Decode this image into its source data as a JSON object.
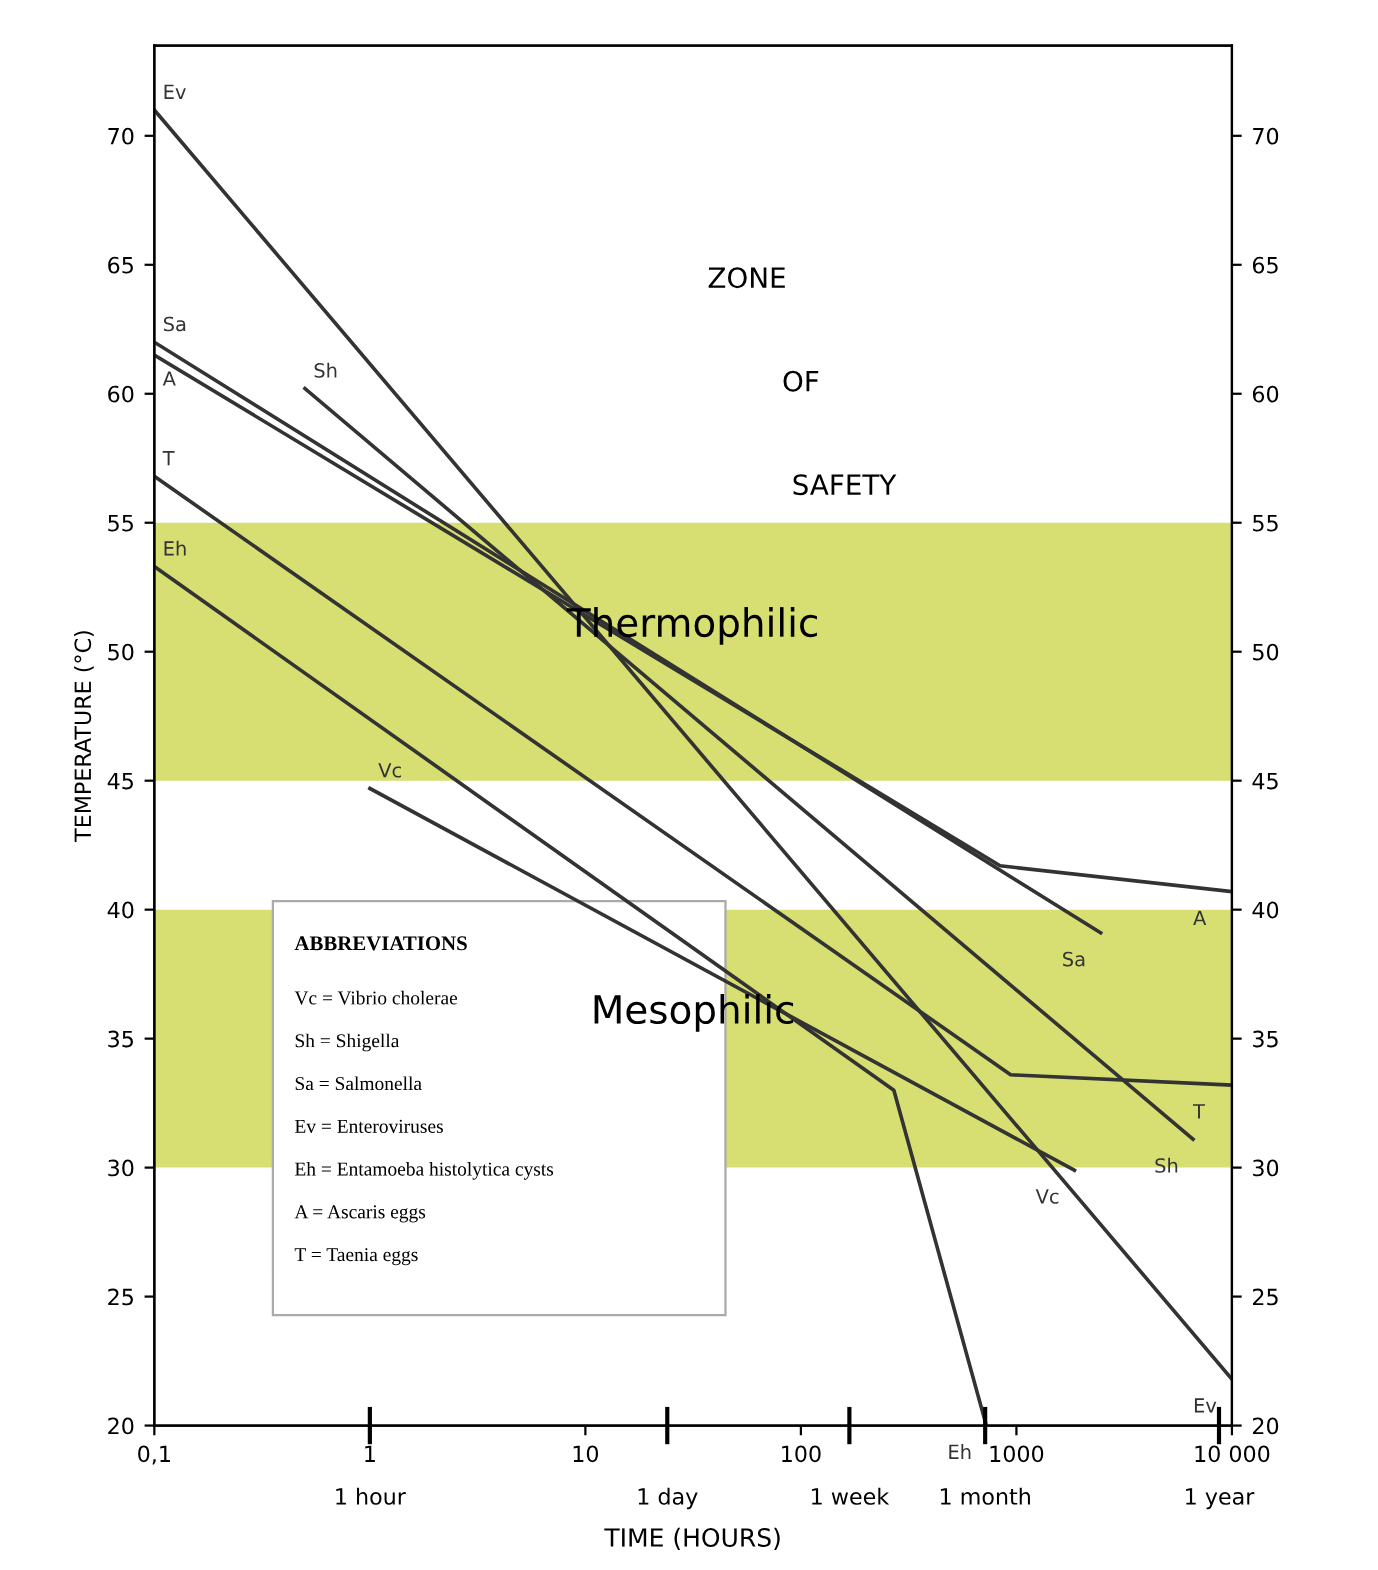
{
  "chart_data": {
    "type": "line",
    "xlabel": "TIME (HOURS)",
    "ylabel": "TEMPERATURE (°C)",
    "log": "x",
    "grid": false,
    "legend": false,
    "marker": "none",
    "line_style": "solid",
    "xlim": [
      0.1,
      10000
    ],
    "xticks": [
      {
        "value": 0.1,
        "label": "0,1"
      },
      1,
      10,
      100,
      1000,
      {
        "value": 10000,
        "label": "10 000"
      }
    ],
    "ylim": [
      20,
      73.5
    ],
    "yticks": [
      20,
      25,
      30,
      35,
      40,
      45,
      50,
      55,
      60,
      65,
      70
    ],
    "y2lim": [
      20,
      73.5
    ],
    "y2ticks": [
      20,
      25,
      30,
      35,
      40,
      45,
      50,
      55,
      60,
      65,
      70
    ],
    "series": [
      {
        "name": "Ev",
        "color": "#333333",
        "x": [
          0.1,
          10000
        ],
        "values": [
          71,
          21.8
        ]
      },
      {
        "name": "Sa",
        "color": "#333333",
        "x": [
          0.1,
          2460
        ],
        "values": [
          62,
          39.1
        ]
      },
      {
        "name": "A",
        "color": "#333333",
        "x": [
          0.1,
          840,
          10000
        ],
        "values": [
          61.5,
          41.7,
          40.7
        ]
      },
      {
        "name": "Sh",
        "color": "#333333",
        "x": [
          0.5,
          6600
        ],
        "values": [
          60.2,
          31.1
        ]
      },
      {
        "name": "T",
        "color": "#333333",
        "x": [
          0.1,
          940,
          10000
        ],
        "values": [
          56.8,
          33.6,
          33.2
        ]
      },
      {
        "name": "Eh",
        "color": "#333333",
        "x": [
          0.1,
          270,
          725
        ],
        "values": [
          53.3,
          33.0,
          20
        ]
      },
      {
        "name": "Vc",
        "color": "#333333",
        "x": [
          1,
          1860
        ],
        "values": [
          44.7,
          29.9
        ]
      }
    ],
    "bands": [
      {
        "axis": "y",
        "from": 45,
        "to": 55,
        "label": "Thermophilic",
        "color": "#cdd64f"
      },
      {
        "axis": "y",
        "from": 30,
        "to": 40,
        "label": "Mesophilic",
        "color": "#cdd64f"
      }
    ],
    "annotations": [
      "1 hour",
      "1 day",
      "1 week",
      "1 month",
      "1 year",
      "ZONE",
      "OF",
      "SAFETY",
      "ABBREVIATIONS",
      "Vc = Vibrio cholerae",
      "Sh = Shigella",
      "Sa = Salmonella",
      "Ev = Enteroviruses",
      "Eh = Entamoeba histolytica cysts",
      "A = Ascaris eggs",
      "T = Taenia eggs"
    ]
  }
}
